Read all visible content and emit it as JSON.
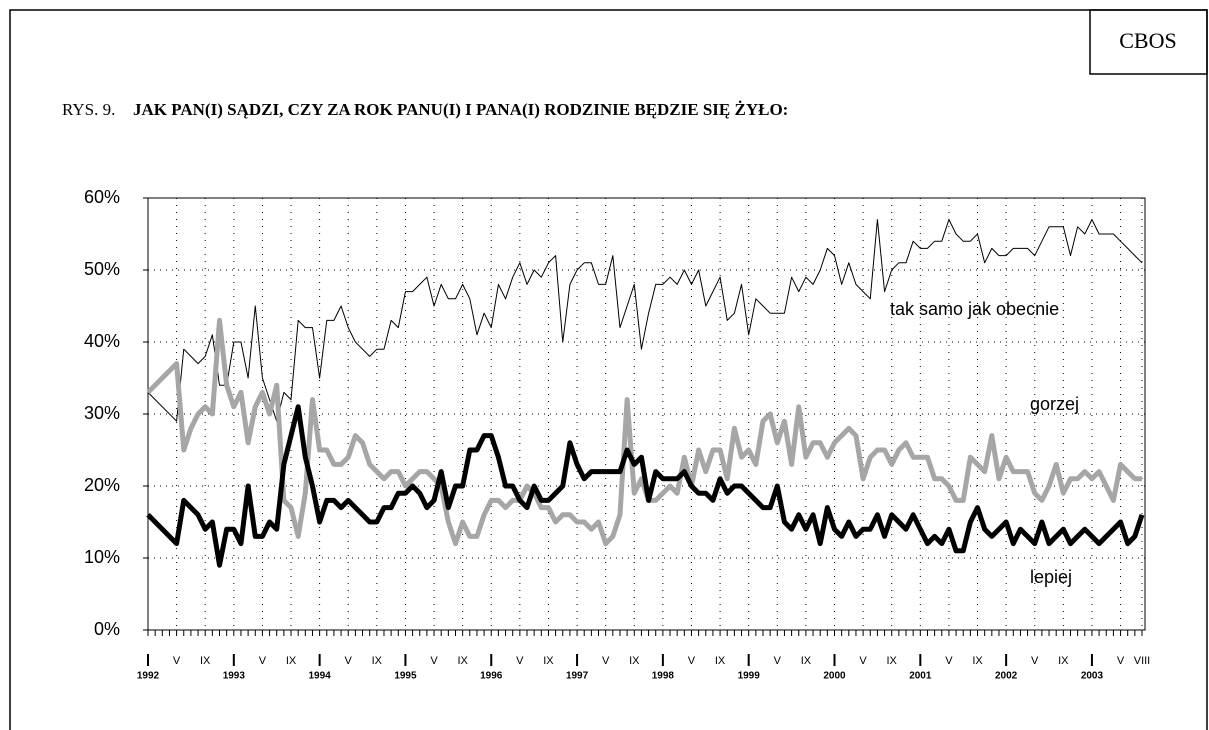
{
  "chart_data": {
    "type": "line",
    "brand": "CBOS",
    "figure_label": "RYS. 9.",
    "title": "JAK PAN(I) SĄDZI, CZY ZA ROK PANU(I) I PANA(I) RODZINIE BĘDZIE SIĘ ŻYŁO:",
    "x": [
      0,
      4,
      5,
      6,
      7,
      8,
      9,
      10,
      11,
      12,
      13,
      14,
      15,
      16,
      17,
      18,
      19,
      20,
      21,
      22,
      23,
      24,
      25,
      26,
      27,
      28,
      29,
      30,
      31,
      32,
      33,
      34,
      35,
      36,
      37,
      38,
      39,
      40,
      41,
      42,
      43,
      44,
      45,
      46,
      47,
      48,
      49,
      50,
      51,
      52,
      53,
      54,
      55,
      56,
      57,
      58,
      59,
      60,
      61,
      62,
      63,
      64,
      65,
      66,
      67,
      68,
      69,
      70,
      71,
      72,
      73,
      74,
      75,
      76,
      77,
      78,
      79,
      80,
      81,
      82,
      83,
      84,
      85,
      86,
      87,
      88,
      89,
      90,
      91,
      92,
      93,
      94,
      95,
      96,
      97,
      98,
      99,
      100,
      101,
      102,
      103,
      104,
      105,
      106,
      107,
      108,
      109,
      110,
      111,
      112,
      113,
      114,
      115,
      116,
      117,
      118,
      119,
      120,
      121,
      122,
      123,
      124,
      125,
      126,
      127,
      128,
      129,
      130,
      131,
      132,
      133,
      134,
      135,
      136,
      137,
      138,
      139
    ],
    "xlim": [
      0,
      139
    ],
    "xticks": [
      {
        "value": 0,
        "label": "I"
      },
      {
        "value": 4,
        "label": "V"
      },
      {
        "value": 8,
        "label": "IX"
      },
      {
        "value": 12,
        "label": "I"
      },
      {
        "value": 16,
        "label": "V"
      },
      {
        "value": 20,
        "label": "IX"
      },
      {
        "value": 24,
        "label": "I"
      },
      {
        "value": 28,
        "label": "V"
      },
      {
        "value": 32,
        "label": "IX"
      },
      {
        "value": 36,
        "label": "I"
      },
      {
        "value": 40,
        "label": "V"
      },
      {
        "value": 44,
        "label": "IX"
      },
      {
        "value": 48,
        "label": "I"
      },
      {
        "value": 52,
        "label": "V"
      },
      {
        "value": 56,
        "label": "IX"
      },
      {
        "value": 60,
        "label": "I"
      },
      {
        "value": 64,
        "label": "V"
      },
      {
        "value": 68,
        "label": "IX"
      },
      {
        "value": 72,
        "label": "I"
      },
      {
        "value": 76,
        "label": "V"
      },
      {
        "value": 80,
        "label": "IX"
      },
      {
        "value": 84,
        "label": "I"
      },
      {
        "value": 88,
        "label": "V"
      },
      {
        "value": 92,
        "label": "IX"
      },
      {
        "value": 96,
        "label": "I"
      },
      {
        "value": 100,
        "label": "V"
      },
      {
        "value": 104,
        "label": "IX"
      },
      {
        "value": 108,
        "label": "I"
      },
      {
        "value": 112,
        "label": "V"
      },
      {
        "value": 116,
        "label": "IX"
      },
      {
        "value": 120,
        "label": "I"
      },
      {
        "value": 124,
        "label": "V"
      },
      {
        "value": 128,
        "label": "IX"
      },
      {
        "value": 132,
        "label": "I"
      },
      {
        "value": 136,
        "label": "V"
      },
      {
        "value": 139,
        "label": "VIII"
      }
    ],
    "year_labels": [
      {
        "value": 0,
        "label": "1992"
      },
      {
        "value": 12,
        "label": "1993"
      },
      {
        "value": 24,
        "label": "1994"
      },
      {
        "value": 36,
        "label": "1995"
      },
      {
        "value": 48,
        "label": "1996"
      },
      {
        "value": 60,
        "label": "1997"
      },
      {
        "value": 72,
        "label": "1998"
      },
      {
        "value": 84,
        "label": "1999"
      },
      {
        "value": 96,
        "label": "2000"
      },
      {
        "value": 108,
        "label": "2001"
      },
      {
        "value": 120,
        "label": "2002"
      },
      {
        "value": 132,
        "label": "2003"
      }
    ],
    "ylim": [
      0,
      60
    ],
    "yticks": [
      {
        "value": 0,
        "label": "0%"
      },
      {
        "value": 10,
        "label": "10%"
      },
      {
        "value": 20,
        "label": "20%"
      },
      {
        "value": 30,
        "label": "30%"
      },
      {
        "value": 40,
        "label": "40%"
      },
      {
        "value": 50,
        "label": "50%"
      },
      {
        "value": 60,
        "label": "60%"
      }
    ],
    "grid": true,
    "series": [
      {
        "name": "tak samo jak obecnie",
        "color": "#000000",
        "width": 1,
        "values": [
          33,
          29,
          39,
          38,
          37,
          38,
          41,
          34,
          34,
          40,
          40,
          35,
          45,
          35,
          32,
          29,
          33,
          32,
          43,
          42,
          42,
          35,
          43,
          43,
          45,
          42,
          40,
          39,
          38,
          39,
          39,
          43,
          42,
          47,
          47,
          48,
          49,
          45,
          48,
          46,
          46,
          48,
          46,
          41,
          44,
          42,
          48,
          46,
          49,
          51,
          48,
          50,
          49,
          51,
          52,
          40,
          48,
          50,
          51,
          51,
          48,
          48,
          52,
          42,
          45,
          48,
          39,
          44,
          48,
          48,
          49,
          48,
          50,
          48,
          50,
          45,
          47,
          49,
          43,
          44,
          48,
          41,
          46,
          45,
          44,
          44,
          44,
          49,
          47,
          49,
          48,
          50,
          53,
          52,
          48,
          51,
          48,
          47,
          46,
          57,
          47,
          50,
          51,
          51,
          54,
          53,
          53,
          54,
          54,
          57,
          55,
          54,
          54,
          55,
          51,
          53,
          52,
          52,
          53,
          53,
          53,
          52,
          54,
          56,
          56,
          56,
          52,
          56,
          55,
          57,
          55,
          55,
          55,
          54,
          53,
          52,
          51
        ]
      },
      {
        "name": "gorzej",
        "color": "#a6a6a6",
        "width": 5,
        "values": [
          33,
          37,
          25,
          28,
          30,
          31,
          30,
          43,
          34,
          31,
          33,
          26,
          31,
          33,
          30,
          34,
          18,
          17,
          13,
          19,
          32,
          25,
          25,
          23,
          23,
          24,
          27,
          26,
          23,
          22,
          21,
          22,
          22,
          20,
          21,
          22,
          22,
          21,
          20,
          15,
          12,
          15,
          13,
          13,
          16,
          18,
          18,
          17,
          18,
          18,
          20,
          19,
          17,
          17,
          15,
          16,
          16,
          15,
          15,
          14,
          15,
          12,
          13,
          16,
          32,
          19,
          21,
          18,
          18,
          19,
          20,
          19,
          24,
          20,
          25,
          22,
          25,
          25,
          21,
          28,
          24,
          25,
          23,
          29,
          30,
          26,
          29,
          23,
          31,
          24,
          26,
          26,
          24,
          26,
          27,
          28,
          27,
          21,
          24,
          25,
          25,
          23,
          25,
          26,
          24,
          24,
          24,
          21,
          21,
          20,
          18,
          18,
          24,
          23,
          22,
          27,
          21,
          24,
          22,
          22,
          22,
          19,
          18,
          20,
          23,
          19,
          21,
          21,
          22,
          21,
          22,
          20,
          18,
          23,
          22,
          21,
          21
        ]
      },
      {
        "name": "lepiej",
        "color": "#000000",
        "width": 5,
        "values": [
          16,
          12,
          18,
          17,
          16,
          14,
          15,
          9,
          14,
          14,
          12,
          20,
          13,
          13,
          15,
          14,
          23,
          27,
          31,
          24,
          20,
          15,
          18,
          18,
          17,
          18,
          17,
          16,
          15,
          15,
          17,
          17,
          19,
          19,
          20,
          19,
          17,
          18,
          22,
          17,
          20,
          20,
          25,
          25,
          27,
          27,
          24,
          20,
          20,
          18,
          17,
          20,
          18,
          18,
          19,
          20,
          26,
          23,
          21,
          22,
          22,
          22,
          22,
          22,
          25,
          23,
          24,
          18,
          22,
          21,
          21,
          21,
          22,
          20,
          19,
          19,
          18,
          21,
          19,
          20,
          20,
          19,
          18,
          17,
          17,
          20,
          15,
          14,
          16,
          14,
          16,
          12,
          17,
          14,
          13,
          15,
          13,
          14,
          14,
          16,
          13,
          16,
          15,
          14,
          16,
          14,
          12,
          13,
          12,
          14,
          11,
          11,
          15,
          17,
          14,
          13,
          14,
          15,
          12,
          14,
          13,
          12,
          15,
          12,
          13,
          14,
          12,
          13,
          14,
          13,
          12,
          13,
          14,
          15,
          12,
          13,
          16
        ]
      }
    ]
  }
}
